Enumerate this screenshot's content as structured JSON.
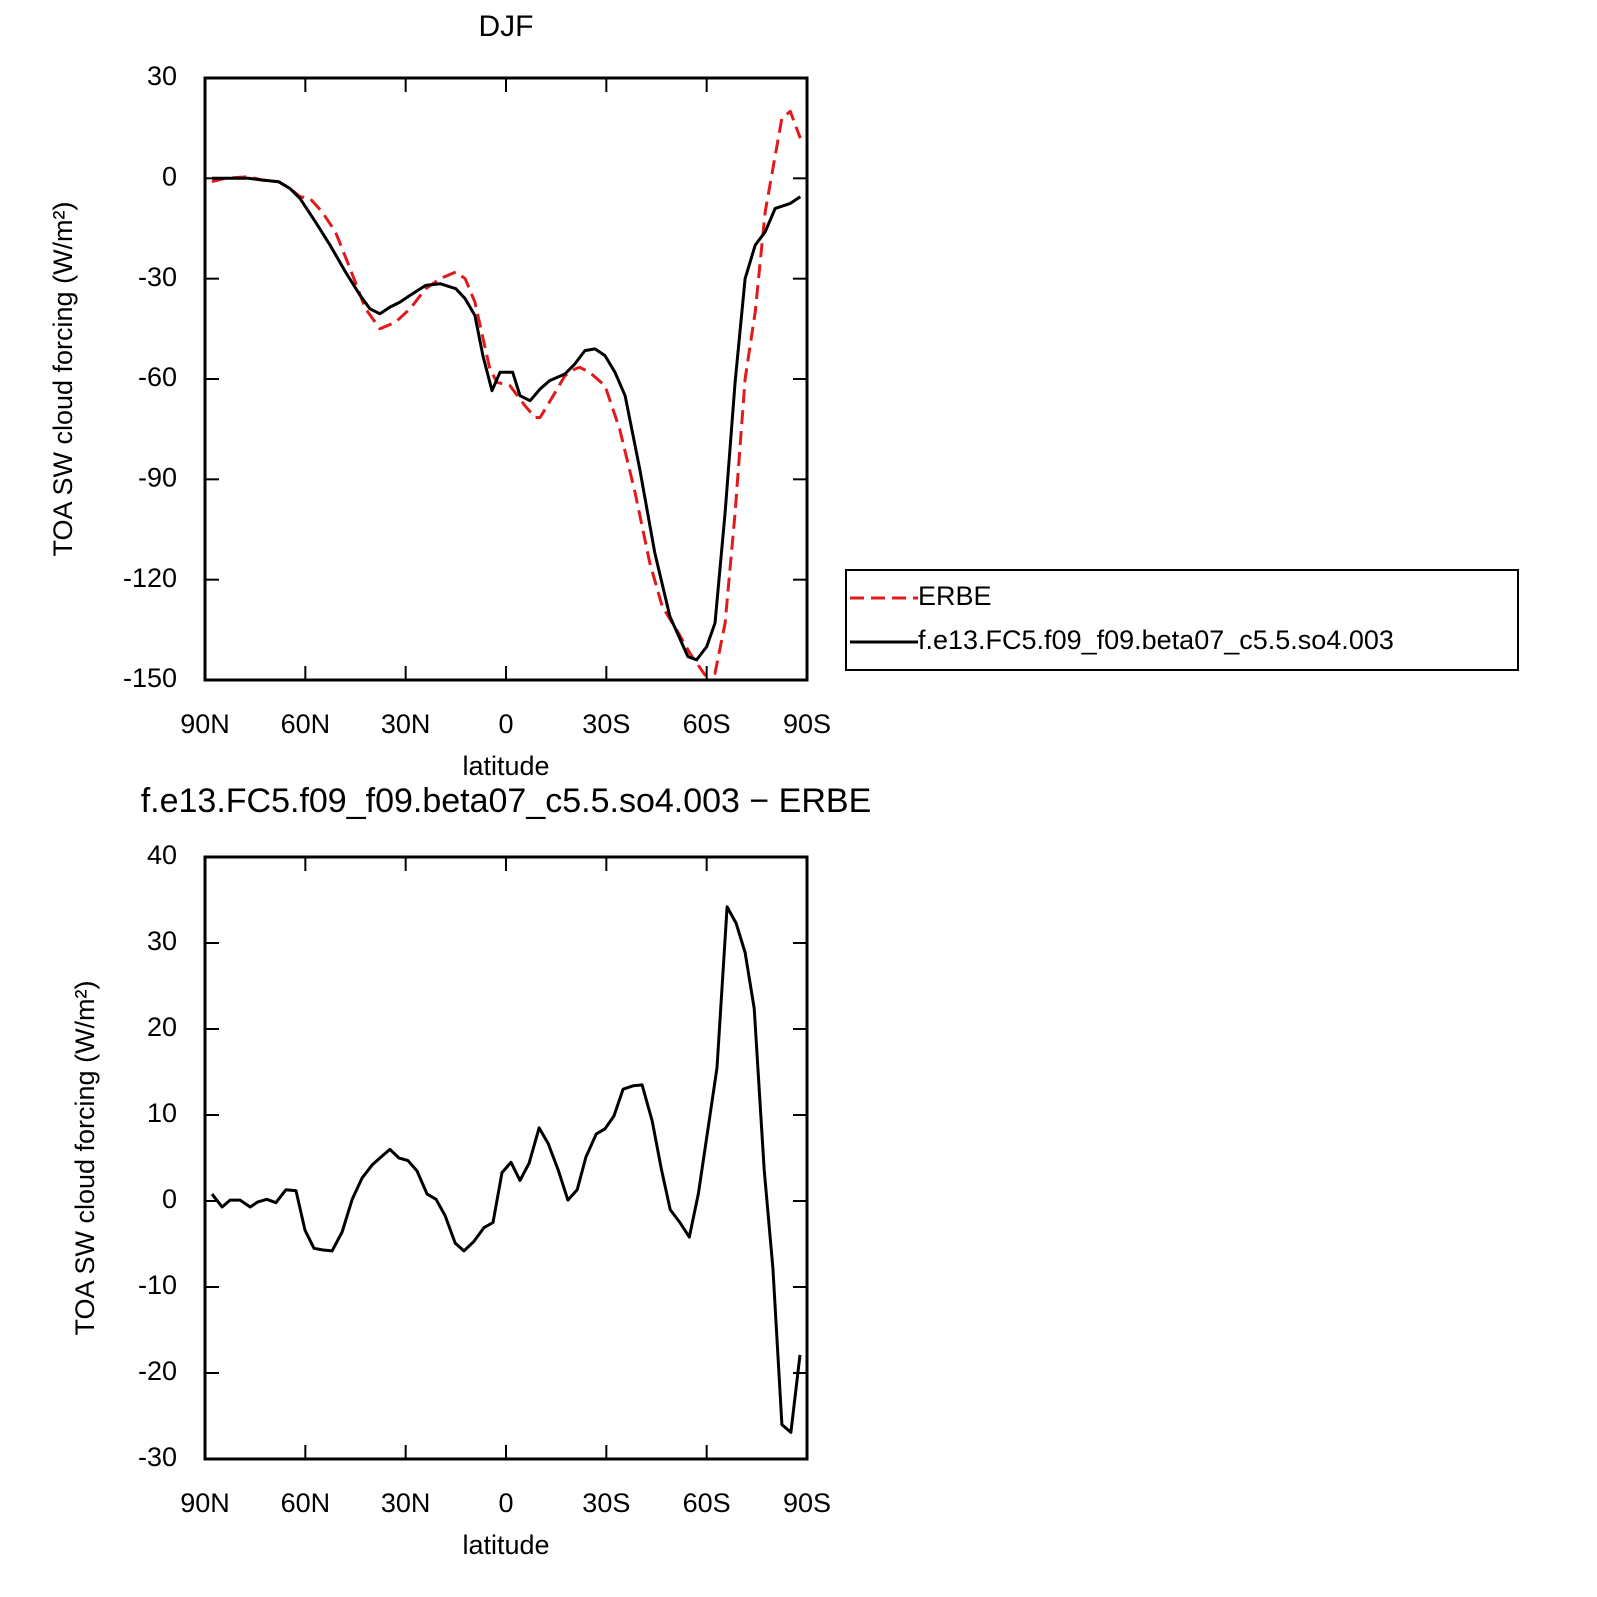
{
  "chart_data": [
    {
      "type": "line",
      "title": "DJF",
      "xlabel": "latitude",
      "ylabel": "TOA SW cloud forcing (W/m²)",
      "xlim": [
        90,
        -90
      ],
      "xticks": [
        {
          "value": 90,
          "label": "90N"
        },
        {
          "value": 60,
          "label": "60N"
        },
        {
          "value": 30,
          "label": "30N"
        },
        0,
        {
          "value": -30,
          "label": "30S"
        },
        {
          "value": -60,
          "label": "60S"
        },
        {
          "value": -90,
          "label": "90S"
        }
      ],
      "ylim": [
        -150,
        30
      ],
      "yticks": [
        -150,
        -120,
        -90,
        -60,
        -30,
        0,
        30
      ],
      "legend": "right",
      "series": [
        {
          "name": "ERBE",
          "color": "#e31a1c",
          "style": "dashed",
          "x": [
            87.9,
            84,
            77,
            73,
            68,
            64.6,
            61.6,
            58.6,
            55,
            51,
            46.6,
            42,
            37.7,
            33,
            28.7,
            24,
            19.7,
            15,
            12.2,
            9.3,
            4.8,
            2.7,
            -1.2,
            -5.7,
            -8.7,
            -10.2,
            -14.7,
            -17.6,
            -20.6,
            -22,
            -25,
            -29.6,
            -34,
            -38.6,
            -43,
            -46.7,
            -51,
            -55,
            -59.5,
            -62.5,
            -65.5,
            -68.5,
            -71.5,
            -74.5,
            -77.5,
            -82.5,
            -85,
            -88
          ],
          "values": [
            -1,
            0,
            0.5,
            -0.5,
            -1,
            -3,
            -5.5,
            -6,
            -10,
            -16,
            -27,
            -39,
            -45,
            -43,
            -39,
            -33,
            -30,
            -28,
            -30,
            -37,
            -57,
            -61,
            -62,
            -68,
            -71.5,
            -71.5,
            -64,
            -59,
            -57,
            -56.5,
            -58,
            -62,
            -75,
            -94,
            -115,
            -128,
            -135,
            -142,
            -148.5,
            -148,
            -133,
            -100,
            -60,
            -40,
            -10,
            18,
            20,
            12
          ]
        },
        {
          "name": "f.e13.FC5.f09_f09.beta07_c5.5.so4.003",
          "color": "#000000",
          "style": "solid",
          "x": [
            87.9,
            84,
            77,
            73,
            68,
            64.6,
            61.6,
            57,
            52.6,
            48,
            43.6,
            40.7,
            37.7,
            34.7,
            31.7,
            28.7,
            24,
            19.7,
            15,
            12.2,
            9.3,
            6.9,
            4.2,
            1.8,
            -2,
            -4.2,
            -7.2,
            -10.2,
            -13,
            -17.6,
            -20.6,
            -23.6,
            -26.6,
            -29.6,
            -32.6,
            -35.6,
            -40,
            -44.5,
            -49,
            -54.4,
            -57,
            -60,
            -62.5,
            -65.5,
            -68.5,
            -71.5,
            -74.5,
            -77.5,
            -80.5,
            -85,
            -88
          ],
          "values": [
            0,
            0,
            0,
            -0.5,
            -1,
            -3,
            -6,
            -13,
            -20,
            -28,
            -35,
            -39,
            -40.5,
            -38.5,
            -37,
            -35,
            -32,
            -31.5,
            -33,
            -36,
            -41,
            -53,
            -63.5,
            -58,
            -58,
            -65,
            -66.5,
            -63,
            -60.5,
            -58.5,
            -55.5,
            -51.5,
            -51,
            -53,
            -58,
            -65,
            -87,
            -112,
            -131,
            -143,
            -144,
            -140,
            -133,
            -100,
            -61,
            -30,
            -20,
            -16,
            -9,
            -7.5,
            -5.5
          ]
        }
      ]
    },
    {
      "type": "line",
      "title": "f.e13.FC5.f09_f09.beta07_c5.5.so4.003 − ERBE",
      "xlabel": "latitude",
      "ylabel": "TOA SW cloud forcing (W/m²)",
      "xlim": [
        90,
        -90
      ],
      "xticks": [
        {
          "value": 90,
          "label": "90N"
        },
        {
          "value": 60,
          "label": "60N"
        },
        {
          "value": 30,
          "label": "30N"
        },
        0,
        {
          "value": -30,
          "label": "30S"
        },
        {
          "value": -60,
          "label": "60S"
        },
        {
          "value": -90,
          "label": "90S"
        }
      ],
      "ylim": [
        -30,
        40
      ],
      "yticks": [
        -30,
        -20,
        -10,
        0,
        10,
        20,
        30,
        40
      ],
      "series": [
        {
          "color": "#000000",
          "style": "solid",
          "x": [
            87.9,
            84.9,
            82.5,
            79.5,
            76.5,
            74.2,
            71.5,
            68.8,
            65.8,
            62.8,
            60.1,
            57.4,
            54.7,
            52,
            49,
            46,
            43,
            40,
            37.4,
            34.7,
            32,
            29.3,
            26.6,
            23.6,
            20.9,
            18.2,
            15.2,
            12.6,
            9.6,
            6.6,
            3.9,
            1.2,
            -1.5,
            -4.2,
            -6.9,
            -9.9,
            -12.6,
            -15.6,
            -18.5,
            -21.3,
            -23.9,
            -27,
            -29.6,
            -32.3,
            -35,
            -38,
            -40.7,
            -43.7,
            -46.4,
            -49.1,
            -52,
            -54.8,
            -57.5,
            -60.4,
            -63.1,
            -66.1,
            -68.8,
            -71.5,
            -74.2,
            -77.2,
            -79.8,
            -82.5,
            -85.2,
            -87.9
          ],
          "values": [
            0.8,
            -0.7,
            0.1,
            0.1,
            -0.7,
            -0.1,
            0.2,
            -0.2,
            1.3,
            1.2,
            -3.4,
            -5.5,
            -5.7,
            -5.8,
            -3.6,
            0.2,
            2.7,
            4.2,
            5.1,
            6.0,
            5.0,
            4.7,
            3.5,
            0.8,
            0.2,
            -1.7,
            -4.9,
            -5.8,
            -4.7,
            -3.1,
            -2.5,
            3.3,
            4.5,
            2.4,
            4.4,
            8.5,
            6.7,
            3.6,
            0.1,
            1.3,
            5.1,
            7.8,
            8.4,
            9.9,
            13.0,
            13.4,
            13.5,
            9.3,
            3.8,
            -1.0,
            -2.5,
            -4.2,
            0.8,
            8.4,
            15.5,
            34.2,
            32.3,
            28.9,
            22.4,
            3.6,
            -7.8,
            -26.0,
            -26.9,
            -17.9
          ]
        }
      ]
    }
  ]
}
